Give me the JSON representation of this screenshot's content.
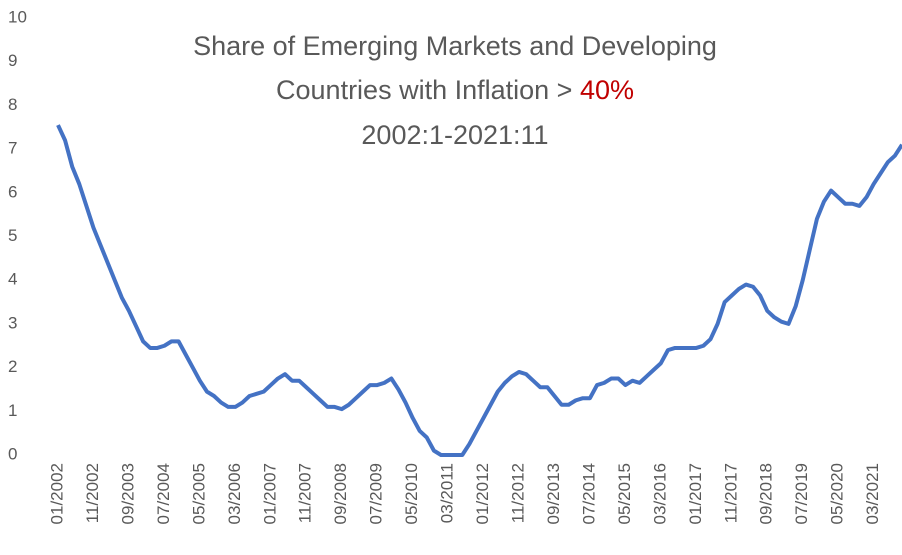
{
  "chart_data": {
    "type": "line",
    "title": {
      "line1": "Share of Emerging Markets and Developing",
      "line2": "Countries with Inflation > ",
      "highlight": "40%",
      "highlight_color": "#c00000",
      "line3": "2002:1-2021:11"
    },
    "categories": [
      "01/2002",
      null,
      null,
      null,
      null,
      "11/2002",
      null,
      null,
      null,
      null,
      "09/2003",
      null,
      null,
      null,
      null,
      "07/2004",
      null,
      null,
      null,
      null,
      "05/2005",
      null,
      null,
      null,
      null,
      "03/2006",
      null,
      null,
      null,
      null,
      "01/2007",
      null,
      null,
      null,
      null,
      "11/2007",
      null,
      null,
      null,
      null,
      "09/2008",
      null,
      null,
      null,
      null,
      "07/2009",
      null,
      null,
      null,
      null,
      "05/2010",
      null,
      null,
      null,
      null,
      "03/2011",
      null,
      null,
      null,
      null,
      "01/2012",
      null,
      null,
      null,
      null,
      "11/2012",
      null,
      null,
      null,
      null,
      "09/2013",
      null,
      null,
      null,
      null,
      "07/2014",
      null,
      null,
      null,
      null,
      "05/2015",
      null,
      null,
      null,
      null,
      "03/2016",
      null,
      null,
      null,
      null,
      "01/2017",
      null,
      null,
      null,
      null,
      "11/2017",
      null,
      null,
      null,
      null,
      "09/2018",
      null,
      null,
      null,
      null,
      "07/2019",
      null,
      null,
      null,
      null,
      "05/2020",
      null,
      null,
      null,
      null,
      "03/2021",
      null,
      null,
      null,
      null
    ],
    "series": [
      {
        "name": "Share",
        "color": "#4472c4",
        "values": [
          7.55,
          7.2,
          6.6,
          6.2,
          5.7,
          5.2,
          4.8,
          4.4,
          4.0,
          3.6,
          3.3,
          2.95,
          2.6,
          2.45,
          2.45,
          2.5,
          2.6,
          2.6,
          2.3,
          2.0,
          1.7,
          1.45,
          1.35,
          1.2,
          1.1,
          1.1,
          1.2,
          1.35,
          1.4,
          1.45,
          1.6,
          1.75,
          1.85,
          1.7,
          1.7,
          1.55,
          1.4,
          1.25,
          1.1,
          1.1,
          1.05,
          1.15,
          1.3,
          1.45,
          1.6,
          1.6,
          1.65,
          1.75,
          1.5,
          1.2,
          0.85,
          0.55,
          0.4,
          0.1,
          0,
          0,
          0,
          0,
          0.25,
          0.55,
          0.85,
          1.15,
          1.45,
          1.65,
          1.8,
          1.9,
          1.85,
          1.7,
          1.55,
          1.55,
          1.35,
          1.15,
          1.15,
          1.25,
          1.3,
          1.3,
          1.6,
          1.65,
          1.75,
          1.75,
          1.6,
          1.7,
          1.65,
          1.8,
          1.95,
          2.1,
          2.4,
          2.45,
          2.45,
          2.45,
          2.45,
          2.5,
          2.65,
          3.0,
          3.5,
          3.65,
          3.8,
          3.9,
          3.85,
          3.65,
          3.3,
          3.15,
          3.05,
          3.0,
          3.4,
          4.0,
          4.7,
          5.4,
          5.8,
          6.05,
          5.9,
          5.75,
          5.75,
          5.7,
          5.9,
          6.2,
          6.45,
          6.7,
          6.85,
          7.1
        ]
      }
    ],
    "ylim": [
      0,
      10
    ],
    "yticks": [
      0,
      1,
      2,
      3,
      4,
      5,
      6,
      7,
      8,
      9,
      10
    ],
    "grid": false
  }
}
